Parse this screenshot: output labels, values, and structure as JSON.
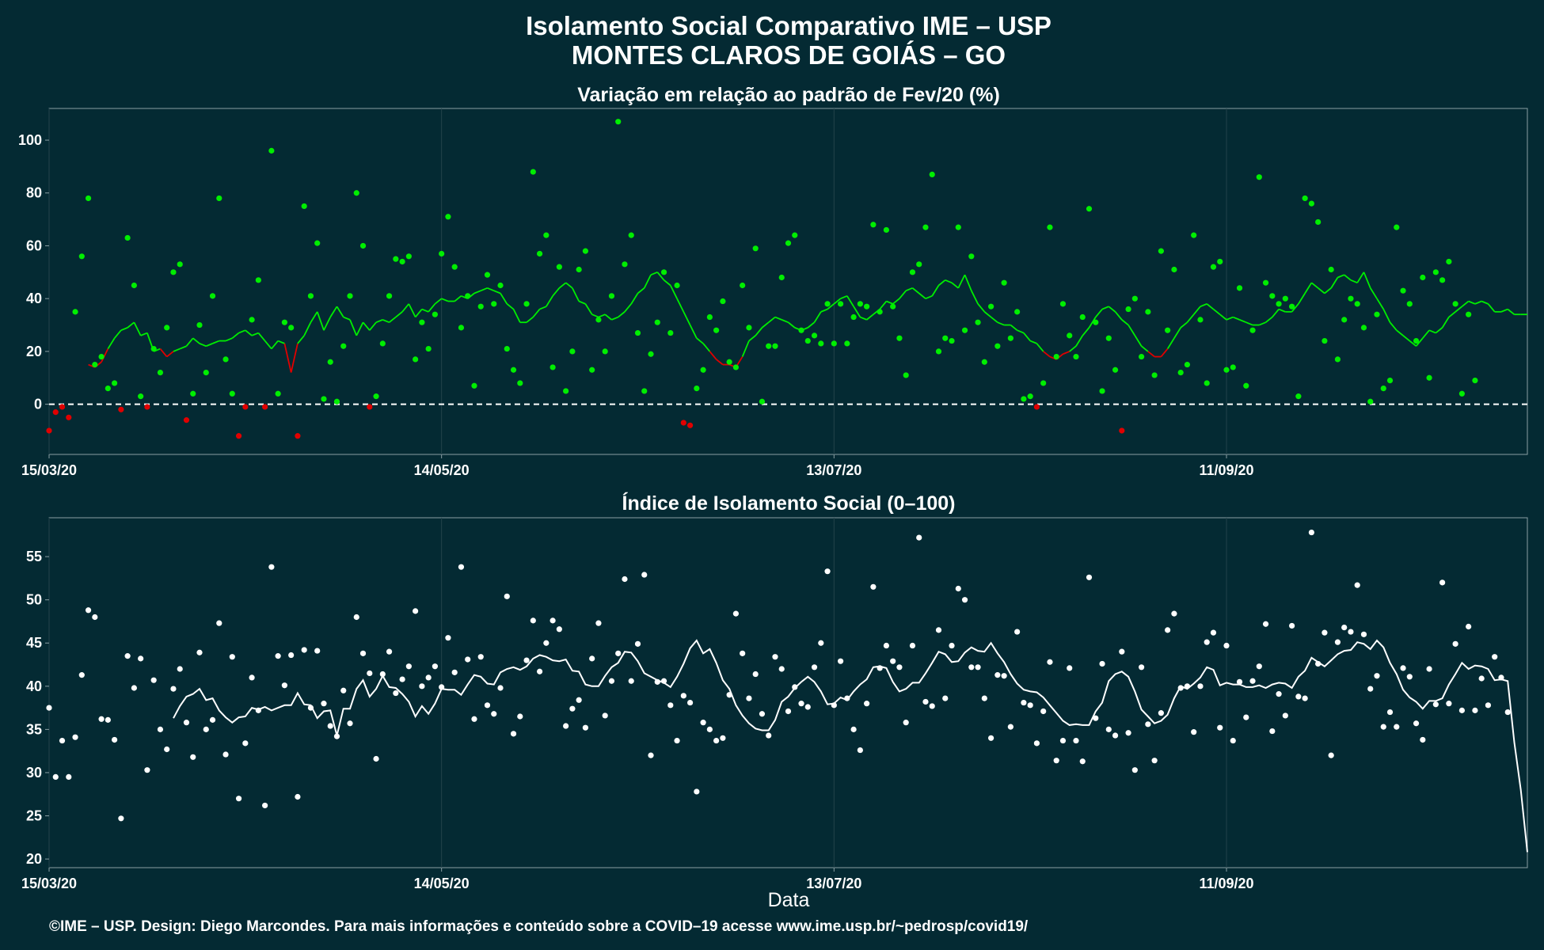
{
  "page": {
    "title_line1": "Isolamento Social Comparativo IME – USP",
    "title_line2": "MONTES CLAROS DE GOIÁS – GO",
    "footer": "©IME – USP. Design: Diego Marcondes. Para mais informações e conteúdo sobre a COVID–19 acesse www.ime.usp.br/~pedrosp/covid19/",
    "colors": {
      "background": "#042a33",
      "panel_border": "#8a9ea3",
      "positive": "#00ee00",
      "negative": "#e00000",
      "index": "#ffffff",
      "grid": "#23434b"
    }
  },
  "chart_data": [
    {
      "type": "scatter",
      "title": "Variação em relação ao padrão de Fev/20 (%)",
      "xlabel": "",
      "ylabel": "",
      "x_tick_labels": [
        "15/03/20",
        "14/05/20",
        "13/07/20",
        "11/09/20"
      ],
      "x_tick_days": [
        0,
        60,
        120,
        180
      ],
      "xlim_days": [
        0,
        226
      ],
      "y_ticks": [
        0,
        20,
        40,
        60,
        80,
        100
      ],
      "ylim": [
        -19,
        112
      ],
      "reference_line": 0,
      "points_note": "green when >= 0, red when < 0",
      "series": [
        {
          "kind": "points",
          "values": [
            -10,
            -3,
            -1,
            -5,
            35,
            56,
            78,
            15,
            18,
            6,
            8,
            -2,
            63,
            45,
            3,
            -1,
            21,
            12,
            29,
            50,
            53,
            -6,
            4,
            30,
            12,
            41,
            78,
            17,
            4,
            -12,
            -1,
            32,
            47,
            -1,
            96,
            4,
            31,
            29,
            -12,
            75,
            41,
            61,
            2,
            16,
            1,
            22,
            41,
            80,
            60,
            -1,
            3,
            23,
            41,
            55,
            54,
            56,
            17,
            31,
            21,
            34,
            57,
            71,
            52,
            29,
            41,
            7,
            37,
            49,
            38,
            45,
            21,
            13,
            8,
            38,
            88,
            57,
            64,
            14,
            52,
            5,
            20,
            51,
            58,
            13,
            32,
            20,
            41,
            107,
            53,
            64,
            27,
            5,
            19,
            31,
            50,
            27,
            45,
            -7,
            -8,
            6,
            13,
            33,
            28,
            39,
            16,
            14,
            45,
            29,
            59,
            1,
            22,
            22,
            48,
            61,
            64,
            28,
            24,
            26,
            23,
            38,
            23,
            38,
            23,
            33,
            38,
            37,
            68,
            35,
            66,
            37,
            25,
            11,
            50,
            53,
            67,
            87,
            20,
            25,
            24,
            67,
            28,
            56,
            31,
            16,
            37,
            22,
            46,
            25,
            35,
            2,
            3,
            -1,
            8,
            67,
            18,
            38,
            26,
            18,
            33,
            74,
            31,
            5,
            25,
            13,
            -10,
            36,
            40,
            18,
            35,
            11,
            58,
            28,
            51,
            12,
            15,
            64,
            32,
            8,
            52,
            54,
            13,
            14,
            44,
            7,
            28,
            86,
            46,
            41,
            38,
            40,
            37,
            3,
            78,
            76,
            69,
            24,
            51,
            17,
            32,
            40,
            38,
            29,
            1,
            34,
            6,
            9,
            67,
            43,
            38,
            24,
            48,
            10,
            50,
            47,
            54,
            38,
            4,
            34,
            9
          ]
        },
        {
          "kind": "moving_average",
          "values": [
            15,
            14,
            16,
            21,
            25,
            28,
            29,
            31,
            26,
            27,
            20,
            21,
            18,
            20,
            21,
            22,
            25,
            23,
            22,
            23,
            24,
            24,
            25,
            27,
            28,
            26,
            27,
            24,
            21,
            24,
            23,
            12,
            23,
            26,
            31,
            35,
            28,
            33,
            37,
            33,
            32,
            26,
            31,
            28,
            31,
            32,
            31,
            33,
            35,
            38,
            33,
            36,
            35,
            38,
            40,
            39,
            39,
            41,
            40,
            42,
            43,
            44,
            43,
            42,
            38,
            36,
            31,
            31,
            33,
            36,
            37,
            41,
            44,
            46,
            44,
            39,
            38,
            34,
            33,
            34,
            32,
            33,
            35,
            38,
            42,
            44,
            49,
            50,
            47,
            45,
            40,
            35,
            30,
            25,
            23,
            20,
            17,
            15,
            15,
            14,
            18,
            24,
            26,
            29,
            31,
            33,
            32,
            31,
            29,
            28,
            29,
            31,
            35,
            36,
            38,
            40,
            41,
            37,
            33,
            32,
            34,
            36,
            39,
            38,
            40,
            43,
            44,
            42,
            40,
            41,
            45,
            47,
            46,
            44,
            49,
            43,
            38,
            35,
            33,
            31,
            30,
            30,
            28,
            27,
            24,
            23,
            20,
            18,
            17,
            19,
            20,
            22,
            26,
            29,
            33,
            36,
            37,
            35,
            32,
            30,
            26,
            22,
            20,
            18,
            18,
            21,
            25,
            29,
            31,
            34,
            37,
            38,
            36,
            34,
            32,
            33,
            32,
            31,
            30,
            30,
            31,
            33,
            36,
            35,
            35,
            38,
            42,
            46,
            44,
            42,
            44,
            48,
            49,
            47,
            46,
            50,
            44,
            40,
            36,
            31,
            28,
            26,
            24,
            22,
            25,
            28,
            27,
            29,
            33,
            35,
            37,
            39,
            38,
            39,
            38,
            35,
            35,
            36,
            34,
            34,
            34
          ]
        }
      ]
    },
    {
      "type": "scatter",
      "title": "Índice de Isolamento Social (0–100)",
      "xlabel": "Data",
      "ylabel": "",
      "x_tick_labels": [
        "15/03/20",
        "14/05/20",
        "13/07/20",
        "11/09/20"
      ],
      "x_tick_days": [
        0,
        60,
        120,
        180
      ],
      "xlim_days": [
        0,
        226
      ],
      "y_ticks": [
        20,
        25,
        30,
        35,
        40,
        45,
        50,
        55
      ],
      "ylim": [
        19,
        59.5
      ],
      "series": [
        {
          "kind": "points",
          "values": [
            37.5,
            29.5,
            33.7,
            29.5,
            34.1,
            41.3,
            48.8,
            48.0,
            36.2,
            36.1,
            33.8,
            24.7,
            43.5,
            39.8,
            43.2,
            30.3,
            40.7,
            35.0,
            32.7,
            39.7,
            42.0,
            35.8,
            31.8,
            43.9,
            35.0,
            36.1,
            47.3,
            32.1,
            43.4,
            27.0,
            33.4,
            41.0,
            37.2,
            26.2,
            53.8,
            43.5,
            40.1,
            43.6,
            27.2,
            44.2,
            37.5,
            44.1,
            38.0,
            35.4,
            34.2,
            39.5,
            35.7,
            48.0,
            43.8,
            41.5,
            31.6,
            41.4,
            44.0,
            39.2,
            40.8,
            42.3,
            48.7,
            40.0,
            41.0,
            42.3,
            39.9,
            45.6,
            41.6,
            53.8,
            43.1,
            36.2,
            43.4,
            37.8,
            36.8,
            39.8,
            50.4,
            34.5,
            36.5,
            43.0,
            47.6,
            41.7,
            45.0,
            47.6,
            46.6,
            35.4,
            37.4,
            38.4,
            35.2,
            43.2,
            47.3,
            36.6,
            40.6,
            43.8,
            52.4,
            40.6,
            44.9,
            52.9,
            32.0,
            40.5,
            40.6,
            37.8,
            33.7,
            38.9,
            38.1,
            27.8,
            35.8,
            35.0,
            33.7,
            34.0,
            39.0,
            48.4,
            43.8,
            38.6,
            41.4,
            36.8,
            34.3,
            43.4,
            42.0,
            37.1,
            39.9,
            38.0,
            37.6,
            42.2,
            45.0,
            53.3,
            37.8,
            42.9,
            38.6,
            35.0,
            32.6,
            38.0,
            51.5,
            42.1,
            44.7,
            42.9,
            42.2,
            35.8,
            44.7,
            57.2,
            38.2,
            37.7,
            46.5,
            38.6,
            44.7,
            51.3,
            50.0,
            42.2,
            42.2,
            38.6,
            34.0,
            41.3,
            41.2,
            35.3,
            46.3,
            38.1,
            37.8,
            33.4,
            37.1,
            42.8,
            31.4,
            33.7,
            42.1,
            33.7,
            31.3,
            52.6,
            36.3,
            42.6,
            35.0,
            34.3,
            44.0,
            34.6,
            30.3,
            42.2,
            35.6,
            31.4,
            36.9,
            46.5,
            48.4,
            39.8,
            40.0,
            34.7,
            40.0,
            45.1,
            46.2,
            35.2,
            44.7,
            33.7,
            40.5,
            36.4,
            40.6,
            42.3,
            47.2,
            34.8,
            39.1,
            36.6,
            47.0,
            38.8,
            38.6,
            57.8,
            42.6,
            46.2,
            32.0,
            45.1,
            46.8,
            46.3,
            51.7,
            46.0,
            39.7,
            41.2,
            35.3,
            37.0,
            35.3,
            42.1,
            41.1,
            35.7,
            33.8,
            42.0,
            37.9,
            52.0,
            38.0,
            44.9,
            37.2,
            46.9,
            37.2,
            40.9,
            37.8,
            43.4,
            41.0,
            37.0
          ]
        },
        {
          "kind": "moving_average",
          "values": [
            36.3,
            37.7,
            38.8,
            39.1,
            39.7,
            38.4,
            38.6,
            37.2,
            36.4,
            35.8,
            36.4,
            36.5,
            37.5,
            37.3,
            37.6,
            37.2,
            37.5,
            37.8,
            37.8,
            39.2,
            37.9,
            37.8,
            36.3,
            37.1,
            37.2,
            34.3,
            37.4,
            37.4,
            39.7,
            40.7,
            38.8,
            39.7,
            41.2,
            39.9,
            39.8,
            39.1,
            38.2,
            36.5,
            37.7,
            36.8,
            38.0,
            39.7,
            39.6,
            39.6,
            39.0,
            40.2,
            41.3,
            41.1,
            40.3,
            40.2,
            41.6,
            42.0,
            42.2,
            41.9,
            42.3,
            43.2,
            43.6,
            43.4,
            43.0,
            42.9,
            43.1,
            41.8,
            41.7,
            40.2,
            40.0,
            40.0,
            41.2,
            42.2,
            42.7,
            44.0,
            43.9,
            42.9,
            41.5,
            41.1,
            40.7,
            40.4,
            39.9,
            41.1,
            42.6,
            44.4,
            45.3,
            43.8,
            44.3,
            42.7,
            40.7,
            39.7,
            37.8,
            36.6,
            35.7,
            35.1,
            34.9,
            34.9,
            36.1,
            38.2,
            38.8,
            39.8,
            40.5,
            41.1,
            40.5,
            39.4,
            37.9,
            38.0,
            38.7,
            38.4,
            39.4,
            40.2,
            40.8,
            42.2,
            42.3,
            42.1,
            40.5,
            39.4,
            39.7,
            40.4,
            40.4,
            41.5,
            42.7,
            44.0,
            43.7,
            42.8,
            42.9,
            43.9,
            44.5,
            44.1,
            44.0,
            45.0,
            43.8,
            42.8,
            41.4,
            40.3,
            39.6,
            39.4,
            39.3,
            38.7,
            37.8,
            36.9,
            36.0,
            35.5,
            35.6,
            35.5,
            35.5,
            37.1,
            38.1,
            40.6,
            41.4,
            41.7,
            41.1,
            39.4,
            37.3,
            36.5,
            35.7,
            36.0,
            36.7,
            38.6,
            40.0,
            39.7,
            40.3,
            41.0,
            42.2,
            41.9,
            40.1,
            40.4,
            40.2,
            40.2,
            39.9,
            39.9,
            40.1,
            39.8,
            40.2,
            40.4,
            40.3,
            39.8,
            41.1,
            41.8,
            43.3,
            42.8,
            42.3,
            43.0,
            43.7,
            44.1,
            44.2,
            45.1,
            44.9,
            44.3,
            45.3,
            44.5,
            42.7,
            41.4,
            39.6,
            38.7,
            38.2,
            37.4,
            38.3,
            38.3,
            38.6,
            40.2,
            41.4,
            42.7,
            42.0,
            42.4,
            42.3,
            42.0,
            40.7,
            40.8,
            40.6,
            33.5,
            28.0,
            20.8
          ]
        }
      ]
    }
  ]
}
